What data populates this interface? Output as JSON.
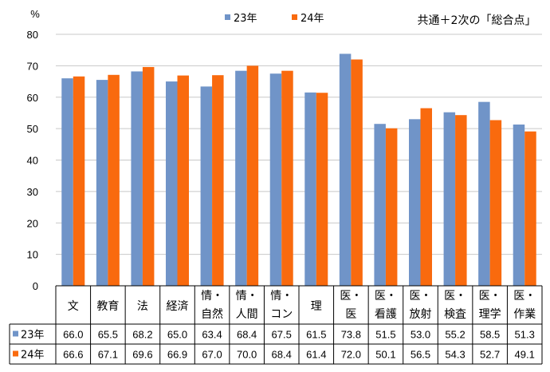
{
  "chart_data": {
    "type": "bar",
    "title": "共通＋2次の「総合点」",
    "y_unit": "%",
    "ylim": [
      0,
      80
    ],
    "yticks": [
      0,
      10,
      20,
      30,
      40,
      50,
      60,
      70,
      80
    ],
    "grid": true,
    "legend_position": "top",
    "categories": [
      [
        "文"
      ],
      [
        "教育"
      ],
      [
        "法"
      ],
      [
        "経済"
      ],
      [
        "情・",
        "自然"
      ],
      [
        "情・",
        "人間"
      ],
      [
        "情・",
        "コン"
      ],
      [
        "理"
      ],
      [
        "医・",
        "医"
      ],
      [
        "医・",
        "看護"
      ],
      [
        "医・",
        "放射"
      ],
      [
        "医・",
        "検査"
      ],
      [
        "医・",
        "理学"
      ],
      [
        "医・",
        "作業"
      ]
    ],
    "series": [
      {
        "name": "23年",
        "color": "#7094c8",
        "values": [
          66.0,
          65.5,
          68.2,
          65.0,
          63.4,
          68.4,
          67.5,
          61.5,
          73.8,
          51.5,
          53.0,
          55.2,
          58.5,
          51.3
        ],
        "labels": [
          "66.0",
          "65.5",
          "68.2",
          "65.0",
          "63.4",
          "68.4",
          "67.5",
          "61.5",
          "73.8",
          "51.5",
          "53.0",
          "55.2",
          "58.5",
          "51.3"
        ]
      },
      {
        "name": "24年",
        "color": "#f96a0e",
        "values": [
          66.6,
          67.1,
          69.6,
          66.9,
          67.0,
          70.0,
          68.4,
          61.4,
          72.0,
          50.1,
          56.5,
          54.3,
          52.7,
          49.1
        ],
        "labels": [
          "66.6",
          "67.1",
          "69.6",
          "66.9",
          "67.0",
          "70.0",
          "68.4",
          "61.4",
          "72.0",
          "50.1",
          "56.5",
          "54.3",
          "52.7",
          "49.1"
        ]
      }
    ]
  }
}
